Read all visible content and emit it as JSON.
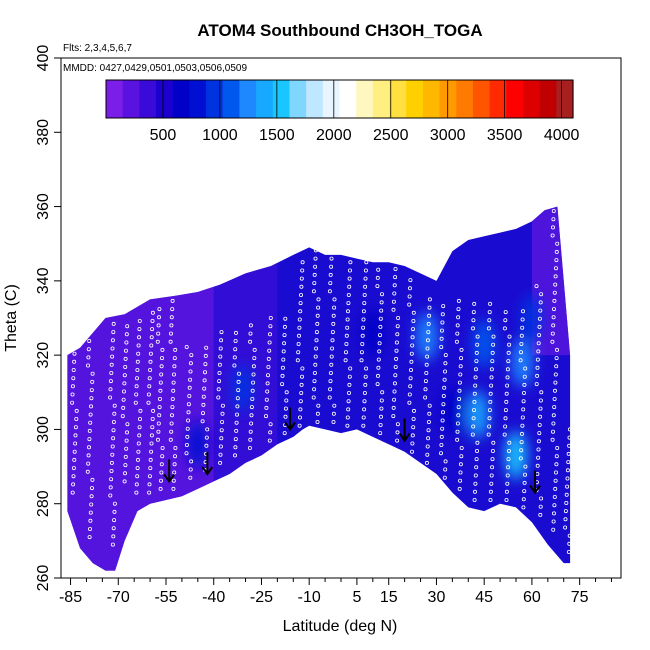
{
  "chart_data": {
    "type": "heatmap",
    "title": "ATOM4 Southbound CH3OH_TOGA",
    "notes": [
      "Flts: 2,3,4,5,6,7",
      "MMDD: 0427,0429,0501,0503,0506,0509"
    ],
    "xlabel": "Latitude (deg N)",
    "ylabel": "Theta (C)",
    "xlim": [
      -88,
      88
    ],
    "ylim": [
      260,
      400
    ],
    "xticks": [
      -85,
      -70,
      -55,
      -40,
      -25,
      -10,
      5,
      15,
      30,
      45,
      60,
      75
    ],
    "yticks": [
      260,
      280,
      300,
      320,
      340,
      360,
      380,
      400
    ],
    "colorbar": {
      "range": [
        0,
        4100
      ],
      "ticks": [
        500,
        1000,
        1500,
        2000,
        2500,
        3000,
        3500,
        4000
      ],
      "colors": [
        "#7b1fe8",
        "#5a12e0",
        "#3a0ad8",
        "#1c00cf",
        "#0000c8",
        "#0010d2",
        "#0033e0",
        "#0058ee",
        "#1e88ff",
        "#17a8ff",
        "#19c6ff",
        "#7fd6ff",
        "#bfe7ff",
        "#e8f5ff",
        "#ffffff",
        "#fff7c0",
        "#ffee80",
        "#ffe040",
        "#ffd000",
        "#ffb800",
        "#ff9a00",
        "#ff7a00",
        "#ff5500",
        "#ff2a00",
        "#ff0000",
        "#dd0000",
        "#c00000",
        "#a81f1f"
      ]
    },
    "ceiling_profile": [
      [
        -86,
        320
      ],
      [
        -82,
        322
      ],
      [
        -78,
        326
      ],
      [
        -74,
        330
      ],
      [
        -68,
        331
      ],
      [
        -60,
        335
      ],
      [
        -52,
        336
      ],
      [
        -45,
        337
      ],
      [
        -38,
        339
      ],
      [
        -30,
        342
      ],
      [
        -22,
        344
      ],
      [
        -15,
        347
      ],
      [
        -10,
        349
      ],
      [
        -5,
        347
      ],
      [
        0,
        347
      ],
      [
        5,
        346
      ],
      [
        10,
        345
      ],
      [
        15,
        345
      ],
      [
        20,
        344
      ],
      [
        25,
        342
      ],
      [
        30,
        340
      ],
      [
        35,
        348
      ],
      [
        40,
        351
      ],
      [
        45,
        352
      ],
      [
        50,
        353
      ],
      [
        55,
        354
      ],
      [
        60,
        356
      ],
      [
        64,
        359
      ],
      [
        68,
        360
      ],
      [
        72,
        320
      ]
    ],
    "floor_profile": [
      [
        -86,
        278
      ],
      [
        -82,
        268
      ],
      [
        -78,
        264
      ],
      [
        -74,
        262
      ],
      [
        -71,
        262
      ],
      [
        -68,
        270
      ],
      [
        -64,
        278
      ],
      [
        -60,
        280
      ],
      [
        -55,
        281
      ],
      [
        -50,
        282
      ],
      [
        -45,
        284
      ],
      [
        -40,
        286
      ],
      [
        -35,
        288
      ],
      [
        -30,
        291
      ],
      [
        -25,
        293
      ],
      [
        -20,
        296
      ],
      [
        -15,
        298
      ],
      [
        -12,
        300
      ],
      [
        -10,
        301
      ],
      [
        -5,
        300
      ],
      [
        0,
        299
      ],
      [
        5,
        300
      ],
      [
        10,
        298
      ],
      [
        15,
        296
      ],
      [
        20,
        294
      ],
      [
        25,
        291
      ],
      [
        30,
        288
      ],
      [
        35,
        283
      ],
      [
        40,
        279
      ],
      [
        45,
        278
      ],
      [
        50,
        280
      ],
      [
        55,
        279
      ],
      [
        60,
        275
      ],
      [
        65,
        269
      ],
      [
        70,
        264
      ],
      [
        72,
        264
      ]
    ],
    "enhancements": [
      {
        "lat": 27,
        "theta": 325,
        "value": 1300
      },
      {
        "lat": 43,
        "theta": 304,
        "value": 1450
      },
      {
        "lat": 45,
        "theta": 323,
        "value": 1100
      },
      {
        "lat": 55,
        "theta": 293,
        "value": 1500
      },
      {
        "lat": 57,
        "theta": 318,
        "value": 1200
      },
      {
        "lat": 60,
        "theta": 330,
        "value": 900
      },
      {
        "lat": -31,
        "theta": 311,
        "value": 950
      },
      {
        "lat": -45,
        "theta": 296,
        "value": 800
      },
      {
        "lat": 35,
        "theta": 305,
        "value": 700
      },
      {
        "lat": 10,
        "theta": 326,
        "value": 650
      }
    ],
    "sample_tracks": [
      {
        "lat": -84,
        "theta_range": [
          282,
          322
        ]
      },
      {
        "lat": -79,
        "theta_range": [
          270,
          326
        ]
      },
      {
        "lat": -72,
        "theta_range": [
          268,
          330
        ]
      },
      {
        "lat": -68,
        "theta_range": [
          285,
          328
        ]
      },
      {
        "lat": -64,
        "theta_range": [
          282,
          330
        ]
      },
      {
        "lat": -60,
        "theta_range": [
          282,
          333
        ]
      },
      {
        "lat": -57,
        "theta_range": [
          283,
          334
        ]
      },
      {
        "lat": -53,
        "theta_range": [
          283,
          335
        ]
      },
      {
        "lat": -48,
        "theta_range": [
          286,
          324
        ]
      },
      {
        "lat": -43,
        "theta_range": [
          288,
          324
        ]
      },
      {
        "lat": -38,
        "theta_range": [
          290,
          327
        ]
      },
      {
        "lat": -33,
        "theta_range": [
          292,
          328
        ]
      },
      {
        "lat": -28,
        "theta_range": [
          294,
          330
        ]
      },
      {
        "lat": -23,
        "theta_range": [
          296,
          331
        ]
      },
      {
        "lat": -18,
        "theta_range": [
          298,
          330
        ]
      },
      {
        "lat": -13,
        "theta_range": [
          300,
          346
        ]
      },
      {
        "lat": -8,
        "theta_range": [
          301,
          350
        ]
      },
      {
        "lat": -3,
        "theta_range": [
          301,
          348
        ]
      },
      {
        "lat": 2,
        "theta_range": [
          300,
          347
        ]
      },
      {
        "lat": 7,
        "theta_range": [
          300,
          346
        ]
      },
      {
        "lat": 12,
        "theta_range": [
          298,
          345
        ]
      },
      {
        "lat": 17,
        "theta_range": [
          296,
          344
        ]
      },
      {
        "lat": 22,
        "theta_range": [
          293,
          342
        ]
      },
      {
        "lat": 27,
        "theta_range": [
          290,
          337
        ]
      },
      {
        "lat": 32,
        "theta_range": [
          286,
          334
        ]
      },
      {
        "lat": 37,
        "theta_range": [
          283,
          336
        ]
      },
      {
        "lat": 42,
        "theta_range": [
          280,
          334
        ]
      },
      {
        "lat": 47,
        "theta_range": [
          280,
          334
        ]
      },
      {
        "lat": 52,
        "theta_range": [
          280,
          333
        ]
      },
      {
        "lat": 57,
        "theta_range": [
          278,
          333
        ]
      },
      {
        "lat": 62,
        "theta_range": [
          276,
          340
        ]
      },
      {
        "lat": 67,
        "theta_range": [
          272,
          360
        ]
      },
      {
        "lat": 71,
        "theta_range": [
          266,
          300
        ]
      }
    ],
    "arrows": [
      {
        "lat": -54,
        "theta": 286
      },
      {
        "lat": -42,
        "theta": 288
      },
      {
        "lat": -16,
        "theta": 300
      },
      {
        "lat": 20,
        "theta": 297
      },
      {
        "lat": 61,
        "theta": 283
      }
    ]
  }
}
